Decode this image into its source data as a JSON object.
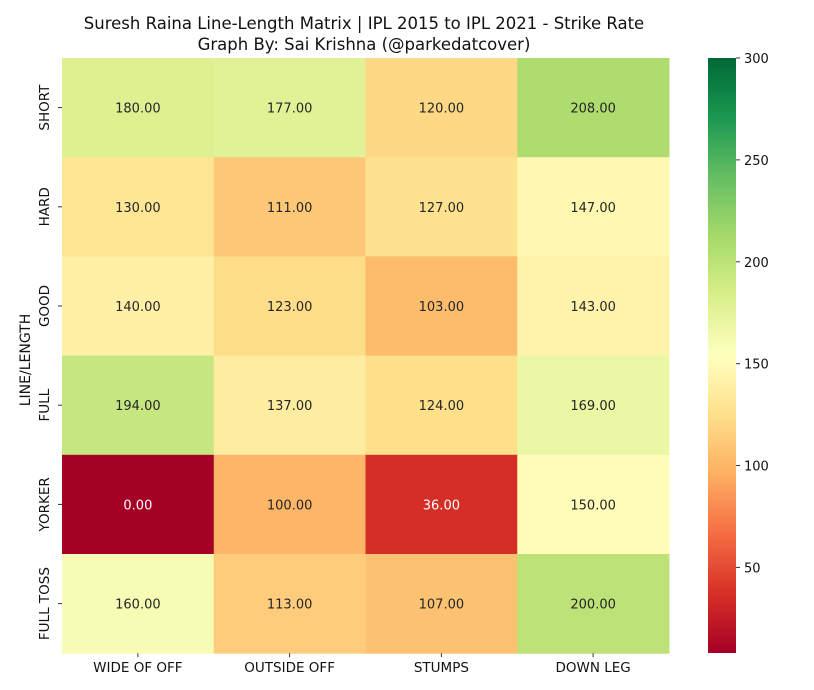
{
  "chart_data": {
    "type": "heatmap",
    "title": "Suresh Raina Line-Length Matrix | IPL 2015 to IPL 2021 - Strike Rate",
    "subtitle": "Graph By: Sai Krishna (@parkedatcover)",
    "ylabel": "LINE/LENGTH",
    "xlabel": "",
    "x_categories": [
      "WIDE OF OFF",
      "OUTSIDE OFF",
      "STUMPS",
      "DOWN LEG"
    ],
    "y_categories": [
      "SHORT",
      "HARD",
      "GOOD",
      "FULL",
      "YORKER",
      "FULL TOSS"
    ],
    "values": [
      [
        180.0,
        177.0,
        120.0,
        208.0
      ],
      [
        130.0,
        111.0,
        127.0,
        147.0
      ],
      [
        140.0,
        123.0,
        103.0,
        143.0
      ],
      [
        194.0,
        137.0,
        124.0,
        169.0
      ],
      [
        0.0,
        100.0,
        36.0,
        150.0
      ],
      [
        160.0,
        113.0,
        107.0,
        200.0
      ]
    ],
    "value_format": "2 decimals",
    "colormap": "RdYlGn",
    "color_range": [
      0,
      300
    ],
    "colorbar_ticks": [
      300,
      250,
      200,
      150,
      100,
      50
    ],
    "grid": false,
    "legend": "colorbar-right"
  }
}
